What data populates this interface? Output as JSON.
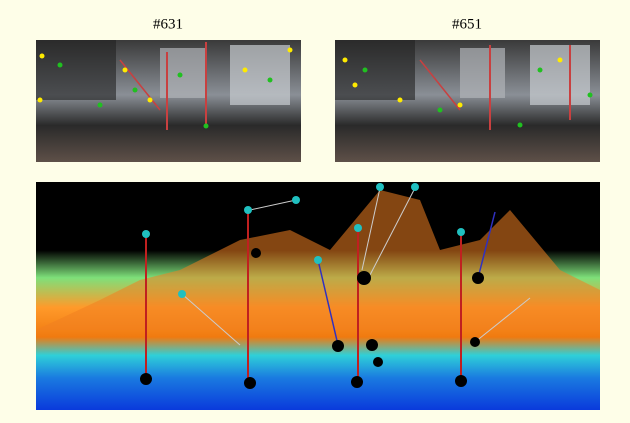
{
  "panels": [
    {
      "label": "#631"
    },
    {
      "label": "#651"
    }
  ]
}
